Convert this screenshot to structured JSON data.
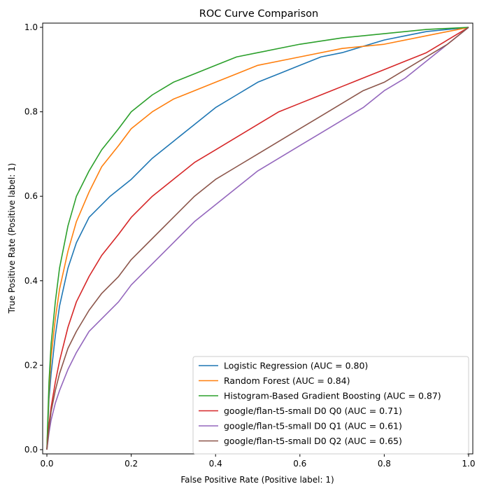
{
  "chart_data": {
    "type": "line",
    "title": "ROC Curve Comparison",
    "xlabel": "False Positive Rate (Positive label: 1)",
    "ylabel": "True Positive Rate (Positive label: 1)",
    "xlim": [
      -0.01,
      1.01
    ],
    "ylim": [
      -0.01,
      1.01
    ],
    "xticks": [
      0.0,
      0.2,
      0.4,
      0.6,
      0.8,
      1.0
    ],
    "yticks": [
      0.0,
      0.2,
      0.4,
      0.6,
      0.8,
      1.0
    ],
    "grid": false,
    "legend_position": "lower-right",
    "series": [
      {
        "name": "Logistic Regression (AUC = 0.80)",
        "color": "#1f77b4",
        "x": [
          0,
          0.005,
          0.01,
          0.02,
          0.03,
          0.05,
          0.07,
          0.1,
          0.15,
          0.2,
          0.25,
          0.3,
          0.35,
          0.4,
          0.45,
          0.5,
          0.55,
          0.6,
          0.65,
          0.7,
          0.75,
          0.8,
          0.85,
          0.9,
          0.95,
          1.0
        ],
        "y": [
          0,
          0.12,
          0.18,
          0.27,
          0.34,
          0.43,
          0.49,
          0.55,
          0.6,
          0.64,
          0.69,
          0.73,
          0.77,
          0.81,
          0.84,
          0.87,
          0.89,
          0.91,
          0.93,
          0.94,
          0.955,
          0.97,
          0.98,
          0.99,
          0.995,
          1.0
        ]
      },
      {
        "name": "Random Forest (AUC = 0.84)",
        "color": "#ff7f0e",
        "x": [
          0,
          0.005,
          0.01,
          0.02,
          0.03,
          0.05,
          0.07,
          0.1,
          0.13,
          0.17,
          0.2,
          0.25,
          0.3,
          0.35,
          0.4,
          0.45,
          0.5,
          0.6,
          0.7,
          0.8,
          0.9,
          1.0
        ],
        "y": [
          0,
          0.14,
          0.22,
          0.31,
          0.38,
          0.47,
          0.54,
          0.61,
          0.67,
          0.72,
          0.76,
          0.8,
          0.83,
          0.85,
          0.87,
          0.89,
          0.91,
          0.93,
          0.95,
          0.96,
          0.98,
          1.0
        ]
      },
      {
        "name": "Histogram-Based Gradient Boosting (AUC = 0.87)",
        "color": "#2ca02c",
        "x": [
          0,
          0.005,
          0.01,
          0.02,
          0.03,
          0.05,
          0.07,
          0.1,
          0.13,
          0.17,
          0.2,
          0.25,
          0.3,
          0.35,
          0.4,
          0.45,
          0.5,
          0.6,
          0.7,
          0.8,
          0.9,
          1.0
        ],
        "y": [
          0,
          0.16,
          0.25,
          0.35,
          0.43,
          0.53,
          0.6,
          0.66,
          0.71,
          0.76,
          0.8,
          0.84,
          0.87,
          0.89,
          0.91,
          0.93,
          0.94,
          0.96,
          0.975,
          0.985,
          0.995,
          1.0
        ]
      },
      {
        "name": "google/flan-t5-small D0 Q0 (AUC = 0.71)",
        "color": "#d62728",
        "x": [
          0,
          0.005,
          0.01,
          0.02,
          0.03,
          0.05,
          0.07,
          0.1,
          0.13,
          0.17,
          0.2,
          0.25,
          0.3,
          0.35,
          0.4,
          0.45,
          0.5,
          0.55,
          0.6,
          0.65,
          0.7,
          0.75,
          0.8,
          0.85,
          0.9,
          0.95,
          1.0
        ],
        "y": [
          0,
          0.06,
          0.1,
          0.16,
          0.21,
          0.29,
          0.35,
          0.41,
          0.46,
          0.51,
          0.55,
          0.6,
          0.64,
          0.68,
          0.71,
          0.74,
          0.77,
          0.8,
          0.82,
          0.84,
          0.86,
          0.88,
          0.9,
          0.92,
          0.94,
          0.97,
          1.0
        ]
      },
      {
        "name": "google/flan-t5-small D0 Q1 (AUC = 0.61)",
        "color": "#9467bd",
        "x": [
          0,
          0.005,
          0.01,
          0.02,
          0.03,
          0.05,
          0.07,
          0.1,
          0.13,
          0.17,
          0.2,
          0.25,
          0.3,
          0.35,
          0.4,
          0.45,
          0.5,
          0.55,
          0.6,
          0.65,
          0.7,
          0.75,
          0.8,
          0.85,
          0.9,
          0.95,
          1.0
        ],
        "y": [
          0,
          0.04,
          0.07,
          0.11,
          0.14,
          0.19,
          0.23,
          0.28,
          0.31,
          0.35,
          0.39,
          0.44,
          0.49,
          0.54,
          0.58,
          0.62,
          0.66,
          0.69,
          0.72,
          0.75,
          0.78,
          0.81,
          0.85,
          0.88,
          0.92,
          0.96,
          1.0
        ]
      },
      {
        "name": "google/flan-t5-small D0 Q2 (AUC = 0.65)",
        "color": "#8c564b",
        "x": [
          0,
          0.005,
          0.01,
          0.02,
          0.03,
          0.05,
          0.07,
          0.1,
          0.13,
          0.17,
          0.2,
          0.25,
          0.3,
          0.35,
          0.4,
          0.45,
          0.5,
          0.55,
          0.6,
          0.65,
          0.7,
          0.75,
          0.8,
          0.85,
          0.9,
          0.95,
          1.0
        ],
        "y": [
          0,
          0.05,
          0.09,
          0.14,
          0.18,
          0.24,
          0.28,
          0.33,
          0.37,
          0.41,
          0.45,
          0.5,
          0.55,
          0.6,
          0.64,
          0.67,
          0.7,
          0.73,
          0.76,
          0.79,
          0.82,
          0.85,
          0.87,
          0.9,
          0.93,
          0.96,
          1.0
        ]
      }
    ]
  }
}
